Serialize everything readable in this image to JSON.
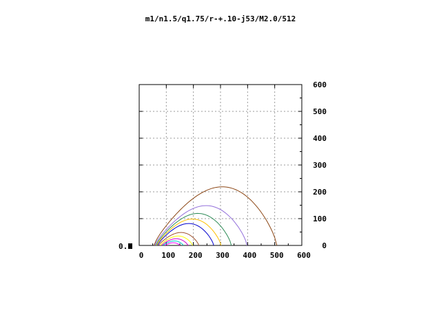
{
  "chart_data": {
    "type": "line",
    "title": "m1/n1.5/q1.75/r-+.10-j53/M2.0/512",
    "xlabel": "",
    "ylabel": "",
    "xlim": [
      0,
      600
    ],
    "ylim": [
      0,
      600
    ],
    "grid": true,
    "y_axis_side": "right",
    "x_ticks": [
      "0",
      "100",
      "200",
      "300",
      "400",
      "500",
      "600"
    ],
    "y_ticks": [
      "0",
      "100",
      "200",
      "300",
      "400",
      "500",
      "600"
    ],
    "left_marker_label": "0.",
    "series": [
      {
        "color": "#ff00ff",
        "x0": 95,
        "x1": 150,
        "peak": 12
      },
      {
        "color": "#00c8c8",
        "x0": 88,
        "x1": 163,
        "peak": 20
      },
      {
        "color": "#d000d0",
        "x0": 83,
        "x1": 180,
        "peak": 30
      },
      {
        "color": "#ffff00",
        "x0": 78,
        "x1": 197,
        "peak": 42
      },
      {
        "color": "#a0522d",
        "x0": 72,
        "x1": 220,
        "peak": 58
      },
      {
        "color": "#0000cd",
        "x0": 68,
        "x1": 275,
        "peak": 98
      },
      {
        "color": "#ffc000",
        "x0": 65,
        "x1": 302,
        "peak": 118
      },
      {
        "color": "#2e8b57",
        "x0": 62,
        "x1": 340,
        "peak": 143
      },
      {
        "color": "#9370db",
        "x0": 58,
        "x1": 398,
        "peak": 178
      },
      {
        "color": "#8b4513",
        "x0": 55,
        "x1": 508,
        "peak": 262
      }
    ]
  }
}
